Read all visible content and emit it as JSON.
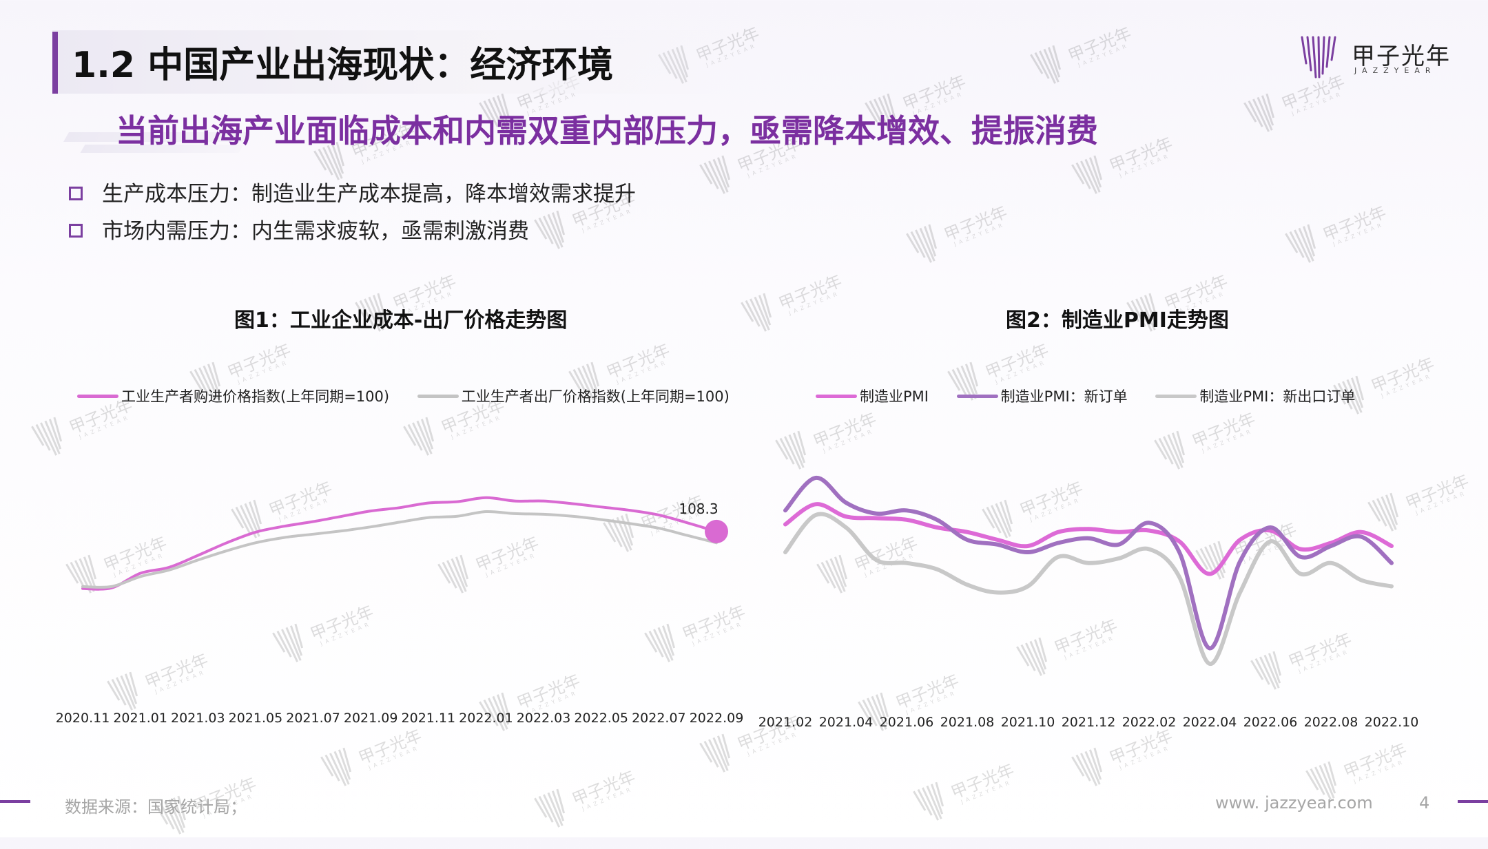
{
  "header": {
    "title": "1.2 中国产业出海现状：经济环境",
    "logo_cn": "甲子光年",
    "logo_en": "JAZZYEAR"
  },
  "subtitle": "当前出海产业面临成本和内需双重内部压力，亟需降本增效、提振消费",
  "bullets": [
    "生产成本压力：制造业生产成本提高，降本增效需求提升",
    "市场内需压力：内生需求疲软，亟需刺激消费"
  ],
  "chart_data": [
    {
      "type": "line",
      "title": "图1：工业企业成本-出厂价格走势图",
      "x": [
        "2020.11",
        "2020.12",
        "2021.01",
        "2021.02",
        "2021.03",
        "2021.04",
        "2021.05",
        "2021.06",
        "2021.07",
        "2021.08",
        "2021.09",
        "2021.10",
        "2021.11",
        "2021.12",
        "2022.01",
        "2022.02",
        "2022.03",
        "2022.04",
        "2022.05",
        "2022.06",
        "2022.07",
        "2022.08",
        "2022.09"
      ],
      "xticks": [
        "2020.11",
        "2021.01",
        "2021.03",
        "2021.05",
        "2021.07",
        "2021.09",
        "2021.11",
        "2022.01",
        "2022.03",
        "2022.05",
        "2022.07",
        "2022.09"
      ],
      "ylim": [
        95,
        122
      ],
      "series": [
        {
          "name": "工业生产者购进价格指数(上年同期=100)",
          "color": "#d96ad2",
          "values": [
            99.7,
            99.8,
            102.0,
            102.9,
            104.7,
            106.6,
            108.2,
            109.1,
            109.8,
            110.6,
            111.4,
            111.9,
            112.6,
            112.8,
            113.4,
            112.9,
            112.9,
            112.5,
            112.0,
            111.5,
            110.8,
            109.6,
            108.3
          ]
        },
        {
          "name": "工业生产者出厂价格指数(上年同期=100)",
          "color": "#c4c4c4",
          "values": [
            100.0,
            100.0,
            101.5,
            102.5,
            104.0,
            105.4,
            106.6,
            107.4,
            107.9,
            108.4,
            109.0,
            109.7,
            110.4,
            110.6,
            111.3,
            111.0,
            110.9,
            110.6,
            110.1,
            109.5,
            108.8,
            107.7,
            106.6
          ]
        }
      ],
      "annotation": {
        "label": "108.3",
        "series": 0,
        "index": 22
      }
    },
    {
      "type": "line",
      "title": "图2：制造业PMI走势图",
      "x": [
        "2021.02",
        "2021.03",
        "2021.04",
        "2021.05",
        "2021.06",
        "2021.07",
        "2021.08",
        "2021.09",
        "2021.10",
        "2021.11",
        "2021.12",
        "2022.01",
        "2022.02",
        "2022.03",
        "2022.04",
        "2022.05",
        "2022.06",
        "2022.07",
        "2022.08",
        "2022.09",
        "2022.10"
      ],
      "xticks": [
        "2021.02",
        "2021.04",
        "2021.06",
        "2021.08",
        "2021.10",
        "2021.12",
        "2022.02",
        "2022.04",
        "2022.06",
        "2022.08",
        "2022.10"
      ],
      "ylim": [
        40,
        56
      ],
      "series": [
        {
          "name": "制造业PMI",
          "color": "#dd6ad6",
          "values": [
            50.6,
            51.9,
            51.1,
            51.0,
            50.9,
            50.4,
            50.1,
            49.6,
            49.2,
            50.1,
            50.3,
            50.1,
            50.2,
            49.5,
            47.4,
            49.6,
            50.2,
            49.0,
            49.4,
            50.1,
            49.2
          ]
        },
        {
          "name": "制造业PMI：新订单",
          "color": "#a070c0",
          "values": [
            51.5,
            53.6,
            52.0,
            51.3,
            51.5,
            50.9,
            49.6,
            49.3,
            48.8,
            49.4,
            49.7,
            49.3,
            50.7,
            48.8,
            42.6,
            48.2,
            50.4,
            48.5,
            49.2,
            49.8,
            48.1
          ]
        },
        {
          "name": "制造业PMI：新出口订单",
          "color": "#c8c8c8",
          "values": [
            48.8,
            51.2,
            50.4,
            48.3,
            48.1,
            47.7,
            46.7,
            46.2,
            46.6,
            48.5,
            48.1,
            48.4,
            49.0,
            47.2,
            41.6,
            46.2,
            49.5,
            47.4,
            48.1,
            47.0,
            46.6
          ]
        }
      ]
    }
  ],
  "footer": {
    "source": "数据来源：国家统计局；",
    "site": "www. jazzyear.com",
    "page": "4"
  },
  "watermark": {
    "cn": "甲子光年",
    "en": "JAZZYEAR"
  }
}
